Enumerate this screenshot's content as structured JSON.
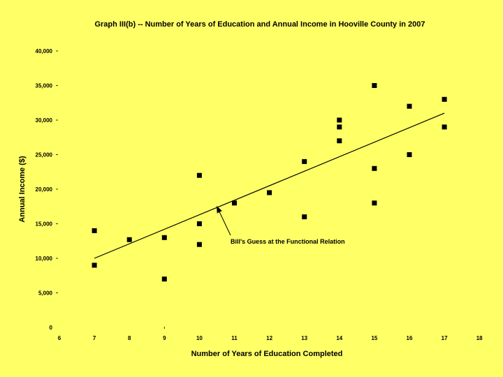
{
  "chart_data": {
    "type": "scatter",
    "title": "Graph III(b) -- Number of Years of Education and Annual Income in Hooville County in 2007",
    "xlabel": "Number of Years of Education Completed",
    "ylabel": "Annual Income ($)",
    "xlim": [
      6,
      18
    ],
    "ylim": [
      0,
      40000
    ],
    "x_ticks": [
      6,
      7,
      8,
      9,
      10,
      11,
      12,
      13,
      14,
      15,
      16,
      17,
      18
    ],
    "y_ticks": [
      0,
      5000,
      10000,
      15000,
      20000,
      25000,
      30000,
      35000,
      40000
    ],
    "y_tick_labels": [
      "0",
      "5,000",
      "10,000",
      "15,000",
      "20,000",
      "25,000",
      "30,000",
      "35,000",
      "40,000"
    ],
    "grid": false,
    "series": [
      {
        "points": [
          {
            "x": 7,
            "y": 14000
          },
          {
            "x": 7,
            "y": 9000
          },
          {
            "x": 8,
            "y": 12700
          },
          {
            "x": 9,
            "y": 13000
          },
          {
            "x": 9,
            "y": 7000
          },
          {
            "x": 10,
            "y": 22000
          },
          {
            "x": 10,
            "y": 15000
          },
          {
            "x": 10,
            "y": 12000
          },
          {
            "x": 11,
            "y": 18000
          },
          {
            "x": 12,
            "y": 19500
          },
          {
            "x": 13,
            "y": 24000
          },
          {
            "x": 13,
            "y": 16000
          },
          {
            "x": 14,
            "y": 30000
          },
          {
            "x": 14,
            "y": 29000
          },
          {
            "x": 14,
            "y": 27000
          },
          {
            "x": 15,
            "y": 35000
          },
          {
            "x": 15,
            "y": 23000
          },
          {
            "x": 15,
            "y": 18000
          },
          {
            "x": 16,
            "y": 32000
          },
          {
            "x": 16,
            "y": 25000
          },
          {
            "x": 17,
            "y": 33000
          },
          {
            "x": 17,
            "y": 29000
          }
        ]
      }
    ],
    "trend_line": {
      "x": [
        7,
        17
      ],
      "y": [
        10000,
        31000
      ]
    },
    "annotation": {
      "text": "Bill's Guess at the Functional Relation",
      "points_to": {
        "x": 10.5,
        "y": 17500
      }
    },
    "colors": {
      "background": "#ffff66",
      "marks": "#000000"
    }
  }
}
